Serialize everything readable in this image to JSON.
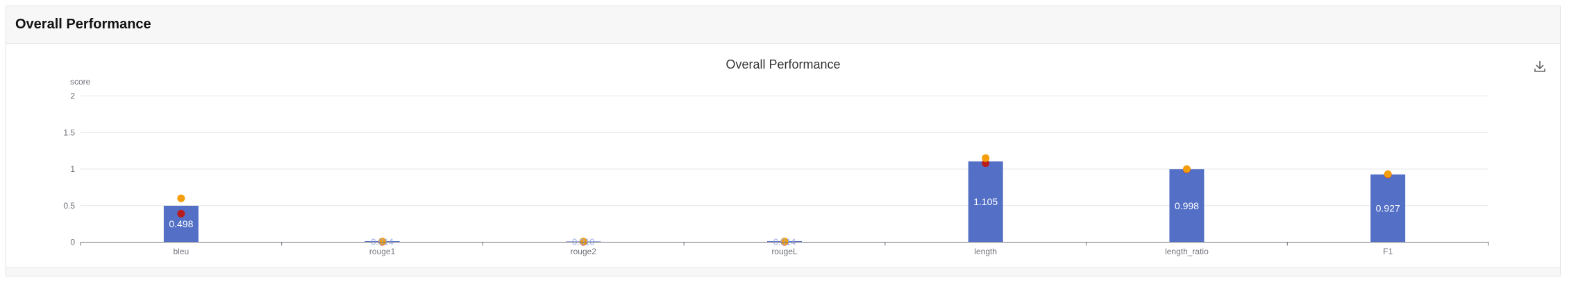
{
  "header": {
    "title": "Overall Performance"
  },
  "toolbar": {
    "download_icon": "download-icon"
  },
  "colors": {
    "bar": "#5470c6",
    "marker_orange": "#f59e0b",
    "marker_red": "#b91c1c"
  },
  "chart_data": {
    "type": "bar",
    "title": "Overall Performance",
    "ylabel": "score",
    "xlabel": "",
    "ylim": [
      0,
      2
    ],
    "yticks": [
      "0",
      "0.5",
      "1",
      "1.5",
      "2"
    ],
    "ytick_values": [
      0,
      0.5,
      1,
      1.5,
      2
    ],
    "grid": true,
    "categories": [
      "bleu",
      "rouge1",
      "rouge2",
      "rougeL",
      "length",
      "length_ratio",
      "F1"
    ],
    "values": [
      0.498,
      0.014,
      0.01,
      0.014,
      1.105,
      0.998,
      0.927
    ],
    "labels": [
      "0.498",
      "0.014",
      "0.010",
      "0.014",
      "1.105",
      "0.998",
      "0.927"
    ],
    "upper_markers": [
      0.6,
      0.01,
      0.01,
      0.01,
      1.15,
      1.0,
      0.93
    ],
    "lower_markers": [
      0.39,
      0.005,
      0.005,
      0.005,
      1.08,
      0.995,
      0.925
    ]
  }
}
